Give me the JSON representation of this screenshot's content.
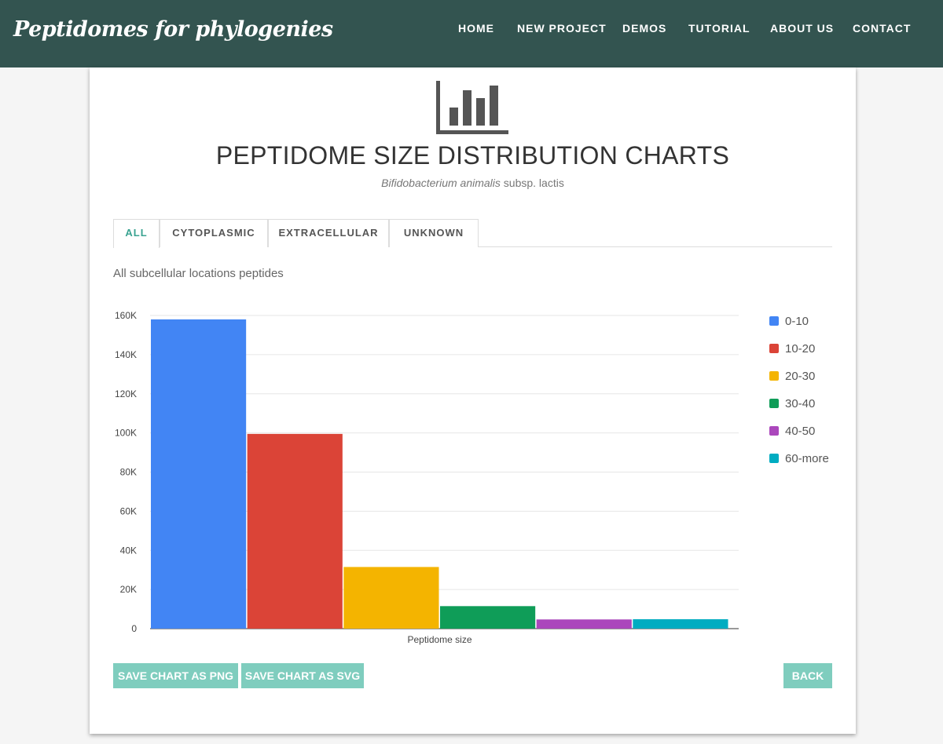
{
  "brand": "Peptidomes for phylogenies",
  "nav": [
    {
      "label": "HOME",
      "name": "nav-home"
    },
    {
      "label": "NEW PROJECT",
      "name": "nav-new-project"
    },
    {
      "label": "DEMOS",
      "name": "nav-demos"
    },
    {
      "label": "TUTORIAL",
      "name": "nav-tutorial"
    },
    {
      "label": "ABOUT US",
      "name": "nav-about-us"
    },
    {
      "label": "CONTACT",
      "name": "nav-contact"
    }
  ],
  "header": {
    "icon": "bar-chart-icon",
    "title": "PEPTIDOME SIZE DISTRIBUTION CHARTS",
    "organism_italic": "Bifidobacterium animalis",
    "organism_rest": " subsp. lactis"
  },
  "tabs": [
    {
      "label": "ALL",
      "active": true
    },
    {
      "label": "CYTOPLASMIC",
      "active": false
    },
    {
      "label": "EXTRACELLULAR",
      "active": false
    },
    {
      "label": "UNKNOWN",
      "active": false
    }
  ],
  "tab_description": "All subcellular locations peptides",
  "chart_data": {
    "type": "bar",
    "xlabel": "Peptidome size",
    "ylabel": "",
    "ylim": [
      0,
      160000
    ],
    "yticks": [
      {
        "value": 0,
        "label": "0"
      },
      {
        "value": 20000,
        "label": "20K"
      },
      {
        "value": 40000,
        "label": "40K"
      },
      {
        "value": 60000,
        "label": "60K"
      },
      {
        "value": 80000,
        "label": "80K"
      },
      {
        "value": 100000,
        "label": "100K"
      },
      {
        "value": 120000,
        "label": "120K"
      },
      {
        "value": 140000,
        "label": "140K"
      },
      {
        "value": 160000,
        "label": "160K"
      }
    ],
    "grid": true,
    "legend_position": "right",
    "series": [
      {
        "name": "0-10",
        "values": [
          158000
        ],
        "color": "#4285f4"
      },
      {
        "name": "10-20",
        "values": [
          99500
        ],
        "color": "#db4437"
      },
      {
        "name": "20-30",
        "values": [
          31500
        ],
        "color": "#f4b400"
      },
      {
        "name": "30-40",
        "values": [
          11500
        ],
        "color": "#0f9d58"
      },
      {
        "name": "40-50",
        "values": [
          4700
        ],
        "color": "#ab47bc"
      },
      {
        "name": "60-more",
        "values": [
          4800
        ],
        "color": "#00acc1"
      }
    ]
  },
  "buttons": {
    "save_png": "SAVE CHART AS PNG",
    "save_svg": "SAVE CHART AS SVG",
    "back": "BACK"
  },
  "colors": {
    "navbar": "#335450",
    "accent": "#3aa391",
    "button": "#7fcdbe"
  }
}
